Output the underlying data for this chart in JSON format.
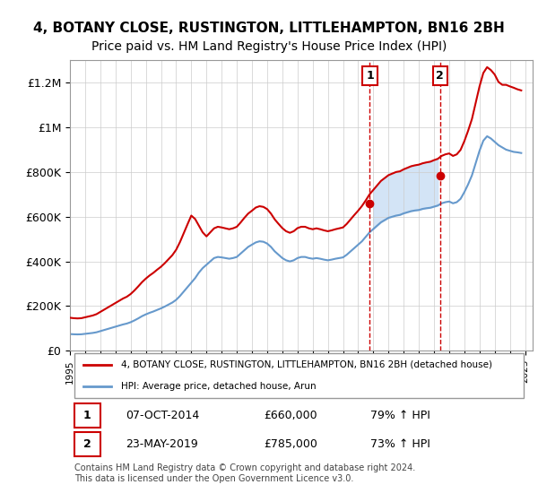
{
  "title": "4, BOTANY CLOSE, RUSTINGTON, LITTLEHAMPTON, BN16 2BH",
  "subtitle": "Price paid vs. HM Land Registry's House Price Index (HPI)",
  "title_fontsize": 11,
  "subtitle_fontsize": 10,
  "ylabel_ticks": [
    "£0",
    "£200K",
    "£400K",
    "£600K",
    "£800K",
    "£1M",
    "£1.2M"
  ],
  "ytick_vals": [
    0,
    200000,
    400000,
    600000,
    800000,
    1000000,
    1200000
  ],
  "ylim": [
    0,
    1300000
  ],
  "xlim_min": 1995.0,
  "xlim_max": 2025.5,
  "background_color": "#ffffff",
  "plot_bg_color": "#ffffff",
  "grid_color": "#cccccc",
  "red_line_color": "#cc0000",
  "blue_line_color": "#6699cc",
  "blue_fill_color": "#cce0f5",
  "sale1_price": 660000,
  "sale1_x": 2014.77,
  "sale2_price": 785000,
  "sale2_x": 2019.39,
  "legend_red_label": "4, BOTANY CLOSE, RUSTINGTON, LITTLEHAMPTON, BN16 2BH (detached house)",
  "legend_blue_label": "HPI: Average price, detached house, Arun",
  "table_row1": [
    "1",
    "07-OCT-2014",
    "£660,000",
    "79% ↑ HPI"
  ],
  "table_row2": [
    "2",
    "23-MAY-2019",
    "£785,000",
    "73% ↑ HPI"
  ],
  "footer": "Contains HM Land Registry data © Crown copyright and database right 2024.\nThis data is licensed under the Open Government Licence v3.0.",
  "hpi_years": [
    1995.0,
    1995.25,
    1995.5,
    1995.75,
    1996.0,
    1996.25,
    1996.5,
    1996.75,
    1997.0,
    1997.25,
    1997.5,
    1997.75,
    1998.0,
    1998.25,
    1998.5,
    1998.75,
    1999.0,
    1999.25,
    1999.5,
    1999.75,
    2000.0,
    2000.25,
    2000.5,
    2000.75,
    2001.0,
    2001.25,
    2001.5,
    2001.75,
    2002.0,
    2002.25,
    2002.5,
    2002.75,
    2003.0,
    2003.25,
    2003.5,
    2003.75,
    2004.0,
    2004.25,
    2004.5,
    2004.75,
    2005.0,
    2005.25,
    2005.5,
    2005.75,
    2006.0,
    2006.25,
    2006.5,
    2006.75,
    2007.0,
    2007.25,
    2007.5,
    2007.75,
    2008.0,
    2008.25,
    2008.5,
    2008.75,
    2009.0,
    2009.25,
    2009.5,
    2009.75,
    2010.0,
    2010.25,
    2010.5,
    2010.75,
    2011.0,
    2011.25,
    2011.5,
    2011.75,
    2012.0,
    2012.25,
    2012.5,
    2012.75,
    2013.0,
    2013.25,
    2013.5,
    2013.75,
    2014.0,
    2014.25,
    2014.5,
    2014.75,
    2015.0,
    2015.25,
    2015.5,
    2015.75,
    2016.0,
    2016.25,
    2016.5,
    2016.75,
    2017.0,
    2017.25,
    2017.5,
    2017.75,
    2018.0,
    2018.25,
    2018.5,
    2018.75,
    2019.0,
    2019.25,
    2019.5,
    2019.75,
    2020.0,
    2020.25,
    2020.5,
    2020.75,
    2021.0,
    2021.25,
    2021.5,
    2021.75,
    2022.0,
    2022.25,
    2022.5,
    2022.75,
    2023.0,
    2023.25,
    2023.5,
    2023.75,
    2024.0,
    2024.25,
    2024.5,
    2024.75
  ],
  "hpi_values": [
    75000,
    74000,
    73500,
    74000,
    76000,
    78000,
    80000,
    83000,
    88000,
    93000,
    98000,
    103000,
    108000,
    113000,
    118000,
    122000,
    128000,
    136000,
    145000,
    155000,
    163000,
    170000,
    176000,
    183000,
    190000,
    198000,
    207000,
    216000,
    228000,
    245000,
    265000,
    285000,
    305000,
    325000,
    350000,
    370000,
    385000,
    400000,
    415000,
    420000,
    418000,
    415000,
    412000,
    415000,
    420000,
    435000,
    450000,
    465000,
    475000,
    485000,
    490000,
    488000,
    480000,
    465000,
    445000,
    430000,
    415000,
    405000,
    400000,
    405000,
    415000,
    420000,
    420000,
    415000,
    412000,
    415000,
    412000,
    408000,
    405000,
    408000,
    412000,
    415000,
    418000,
    430000,
    445000,
    460000,
    475000,
    490000,
    510000,
    530000,
    545000,
    560000,
    575000,
    585000,
    595000,
    600000,
    605000,
    608000,
    615000,
    620000,
    625000,
    628000,
    630000,
    635000,
    638000,
    640000,
    645000,
    650000,
    660000,
    665000,
    668000,
    660000,
    665000,
    680000,
    710000,
    745000,
    785000,
    840000,
    895000,
    940000,
    960000,
    950000,
    935000,
    920000,
    910000,
    900000,
    895000,
    890000,
    888000,
    885000
  ],
  "red_values": [
    148000,
    146000,
    145000,
    146000,
    150000,
    154000,
    158000,
    164000,
    174000,
    184000,
    194000,
    204000,
    214000,
    224000,
    234000,
    242000,
    254000,
    270000,
    288000,
    307000,
    323000,
    337000,
    349000,
    363000,
    376000,
    392000,
    410000,
    428000,
    452000,
    486000,
    526000,
    566000,
    605000,
    590000,
    560000,
    530000,
    512000,
    530000,
    548000,
    555000,
    552000,
    548000,
    544000,
    548000,
    555000,
    574000,
    595000,
    614000,
    627000,
    641000,
    647000,
    644000,
    634000,
    614000,
    588000,
    568000,
    549000,
    535000,
    528000,
    535000,
    549000,
    555000,
    555000,
    548000,
    544000,
    548000,
    544000,
    539000,
    535000,
    539000,
    544000,
    548000,
    552000,
    568000,
    588000,
    608000,
    627000,
    648000,
    673000,
    700000,
    720000,
    740000,
    760000,
    773000,
    786000,
    793000,
    800000,
    803000,
    812000,
    819000,
    826000,
    830000,
    833000,
    839000,
    843000,
    846000,
    853000,
    859000,
    872000,
    879000,
    883000,
    872000,
    879000,
    899000,
    938000,
    985000,
    1037000,
    1110000,
    1183000,
    1243000,
    1269000,
    1256000,
    1236000,
    1203000,
    1190000,
    1190000,
    1183000,
    1177000,
    1170000,
    1165000
  ]
}
